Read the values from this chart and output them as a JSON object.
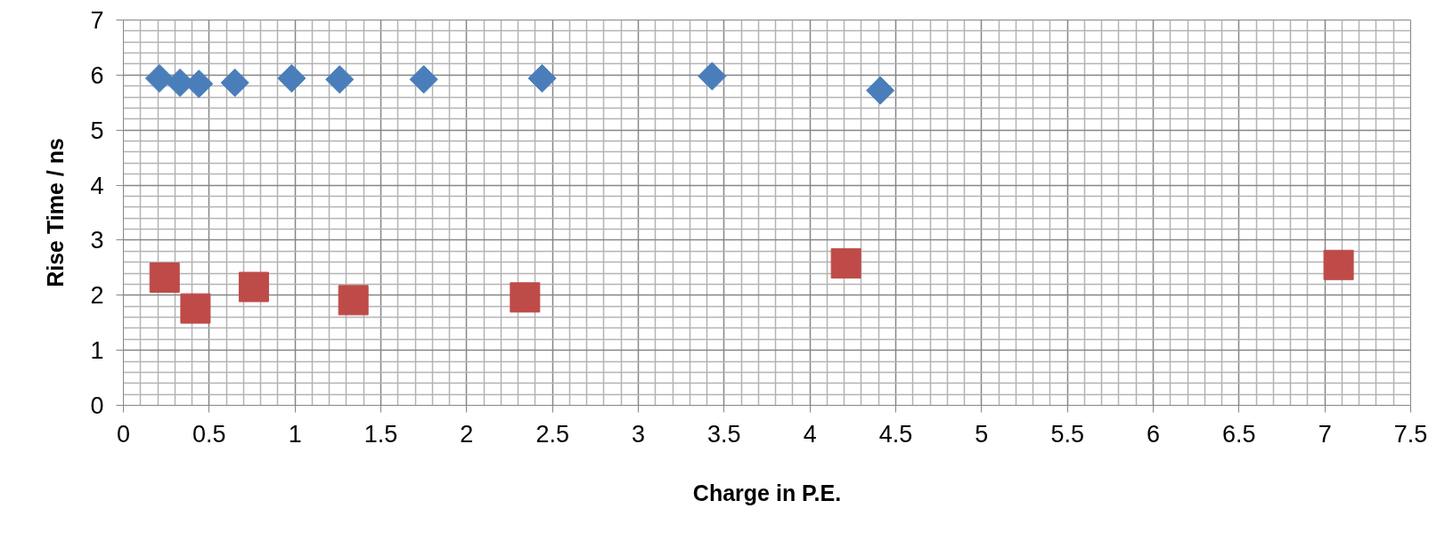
{
  "chart_data": {
    "type": "scatter",
    "xlabel": "Charge in P.E.",
    "ylabel": "Rise Time / ns",
    "xlim": [
      0,
      7.5
    ],
    "ylim": [
      0,
      7
    ],
    "xticks": [
      0,
      0.5,
      1,
      1.5,
      2,
      2.5,
      3,
      3.5,
      4,
      4.5,
      5,
      5.5,
      6,
      6.5,
      7,
      7.5
    ],
    "yticks": [
      0,
      1,
      2,
      3,
      4,
      5,
      6,
      7
    ],
    "grid": true,
    "series": [
      {
        "color": "#4a7ebb",
        "marker": "diamond",
        "x": [
          0.21,
          0.33,
          0.44,
          0.65,
          0.98,
          1.26,
          1.75,
          2.44,
          3.43,
          4.41
        ],
        "values": [
          5.94,
          5.86,
          5.84,
          5.86,
          5.94,
          5.92,
          5.92,
          5.94,
          5.98,
          5.72
        ]
      },
      {
        "color": "#be4b48",
        "marker": "square",
        "x": [
          0.24,
          0.42,
          0.76,
          1.34,
          2.34,
          4.21,
          7.08
        ],
        "values": [
          2.32,
          1.76,
          2.15,
          1.91,
          1.96,
          2.58,
          2.55
        ]
      }
    ]
  }
}
